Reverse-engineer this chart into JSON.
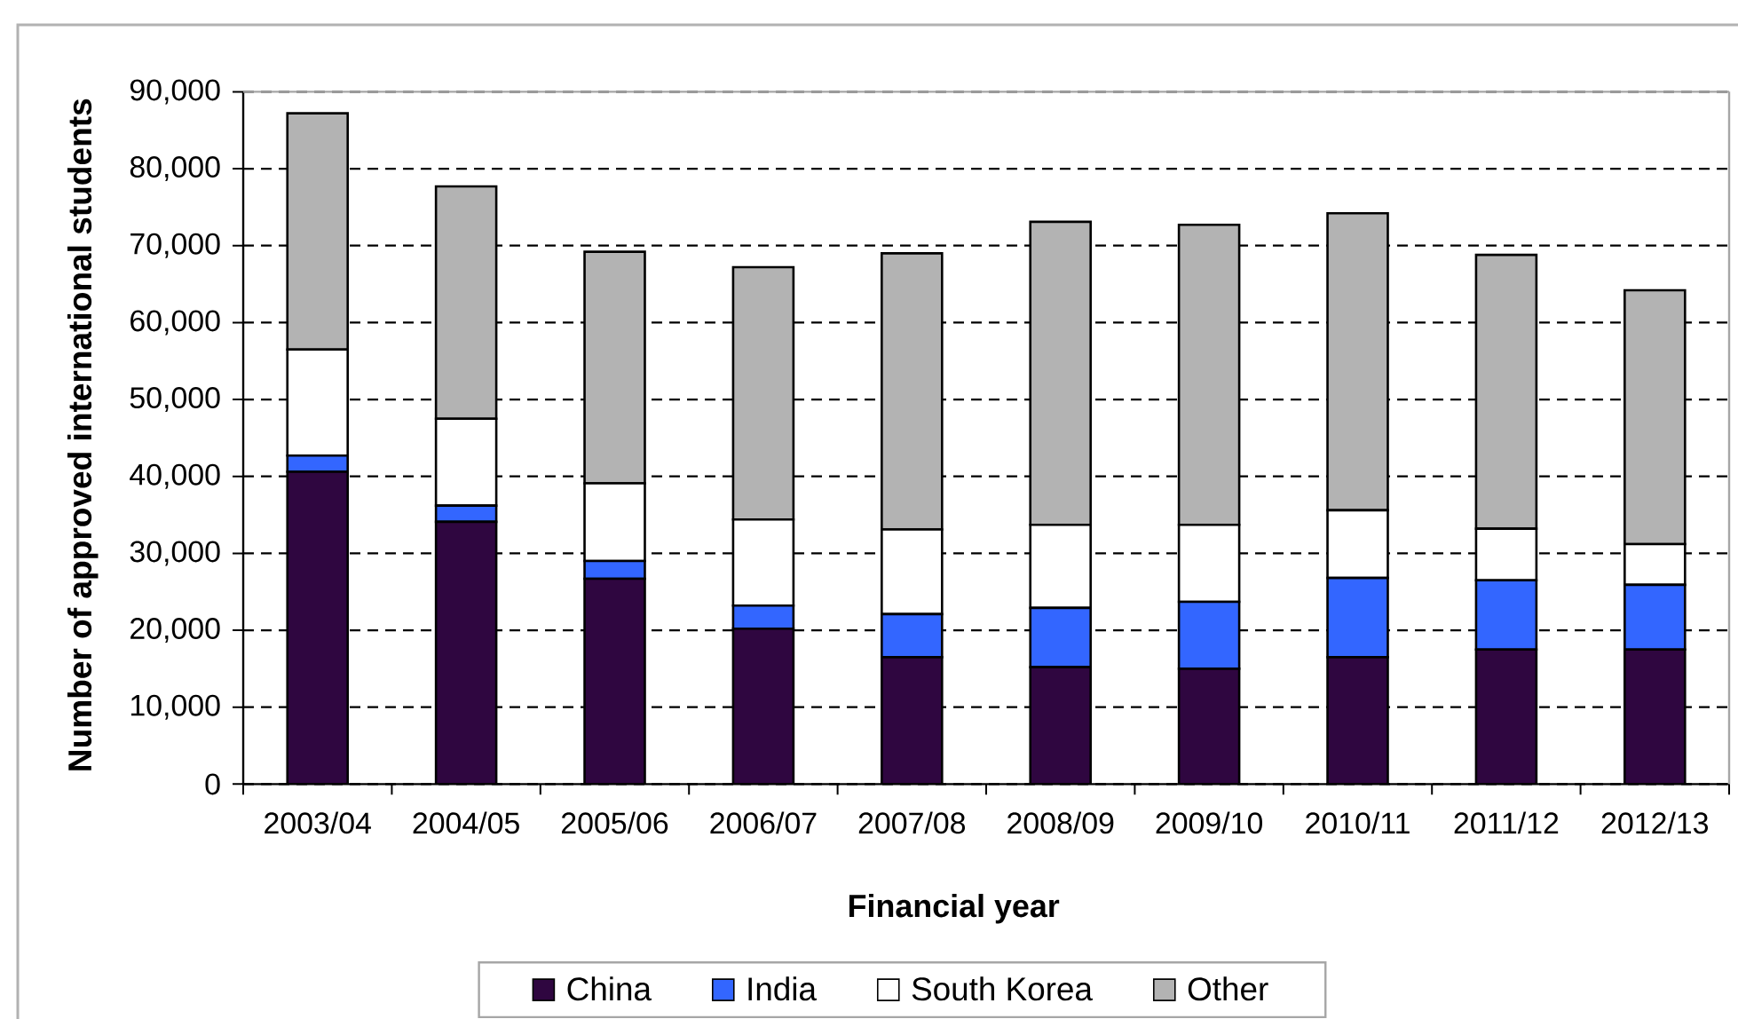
{
  "chart_data": {
    "type": "bar",
    "stacked": true,
    "xlabel": "Financial year",
    "ylabel": "Number of approved international students",
    "categories": [
      "2003/04",
      "2004/05",
      "2005/06",
      "2006/07",
      "2007/08",
      "2008/09",
      "2009/10",
      "2010/11",
      "2011/12",
      "2012/13"
    ],
    "series": [
      {
        "name": "China",
        "color": "#2f0640",
        "values": [
          40600,
          34100,
          26700,
          20200,
          16500,
          15200,
          15000,
          16500,
          17500,
          17500
        ]
      },
      {
        "name": "India",
        "color": "#3366ff",
        "values": [
          2100,
          2100,
          2300,
          3000,
          5600,
          7700,
          8700,
          10300,
          9000,
          8400
        ]
      },
      {
        "name": "South Korea",
        "color": "#ffffff",
        "values": [
          13800,
          11300,
          10100,
          11200,
          11000,
          10800,
          10000,
          8800,
          6700,
          5300
        ]
      },
      {
        "name": "Other",
        "color": "#b3b3b3",
        "values": [
          30700,
          30200,
          30100,
          32800,
          35900,
          39400,
          39000,
          38600,
          35600,
          33000
        ]
      }
    ],
    "ylim": [
      0,
      90000
    ],
    "yticks": [
      {
        "value": 0,
        "label": "0"
      },
      {
        "value": 10000,
        "label": "10,000"
      },
      {
        "value": 20000,
        "label": "20,000"
      },
      {
        "value": 30000,
        "label": "30,000"
      },
      {
        "value": 40000,
        "label": "40,000"
      },
      {
        "value": 50000,
        "label": "50,000"
      },
      {
        "value": 60000,
        "label": "60,000"
      },
      {
        "value": 70000,
        "label": "70,000"
      },
      {
        "value": 80000,
        "label": "80,000"
      },
      {
        "value": 90000,
        "label": "90,000"
      }
    ],
    "grid": "y",
    "legend": "bottom"
  }
}
